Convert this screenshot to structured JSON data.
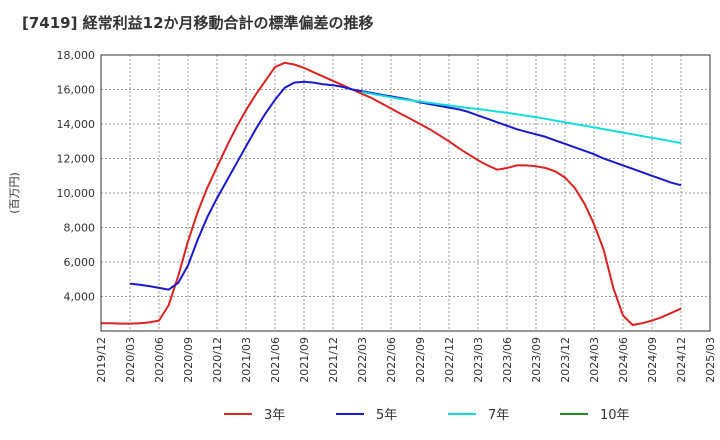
{
  "chart_data": {
    "type": "line",
    "title": "[7419]  経常利益12か月移動合計の標準偏差の推移",
    "ylabel": "(百万円)",
    "xlabel": "",
    "ylim": [
      2000,
      18000
    ],
    "yticks": [
      4000,
      6000,
      8000,
      10000,
      12000,
      14000,
      16000,
      18000
    ],
    "ytick_labels": [
      "4,000",
      "6,000",
      "8,000",
      "10,000",
      "12,000",
      "14,000",
      "16,000",
      "18,000"
    ],
    "xticks": [
      "2019-12",
      "2020-03",
      "2020-06",
      "2020-09",
      "2020-12",
      "2021-03",
      "2021-06",
      "2021-09",
      "2021-12",
      "2022-03",
      "2022-06",
      "2022-09",
      "2022-12",
      "2023-03",
      "2023-06",
      "2023-09",
      "2023-12",
      "2024-03",
      "2024-06",
      "2024-09",
      "2024-12",
      "2025-03"
    ],
    "xtick_labels": [
      "2019/12",
      "2020/03",
      "2020/06",
      "2020/09",
      "2020/12",
      "2021/03",
      "2021/06",
      "2021/09",
      "2021/12",
      "2022/03",
      "2022/06",
      "2022/09",
      "2022/12",
      "2023/03",
      "2023/06",
      "2023/09",
      "2023/12",
      "2024/03",
      "2024/06",
      "2024/09",
      "2024/12",
      "2025/03"
    ],
    "grid": true,
    "legend_position": "bottom",
    "series": [
      {
        "name": "3年",
        "color": "#dd2222",
        "x": [
          "2019-12",
          "2020-01",
          "2020-02",
          "2020-03",
          "2020-04",
          "2020-05",
          "2020-06",
          "2020-07",
          "2020-08",
          "2020-09",
          "2020-10",
          "2020-11",
          "2020-12",
          "2021-01",
          "2021-02",
          "2021-03",
          "2021-04",
          "2021-05",
          "2021-06",
          "2021-07",
          "2021-08",
          "2021-09",
          "2021-10",
          "2021-11",
          "2021-12",
          "2022-01",
          "2022-02",
          "2022-03",
          "2022-04",
          "2022-05",
          "2022-06",
          "2022-07",
          "2022-08",
          "2022-09",
          "2022-10",
          "2022-11",
          "2022-12",
          "2023-01",
          "2023-02",
          "2023-03",
          "2023-04",
          "2023-05",
          "2023-06",
          "2023-07",
          "2023-08",
          "2023-09",
          "2023-10",
          "2023-11",
          "2023-12",
          "2024-01",
          "2024-02",
          "2024-03",
          "2024-04",
          "2024-05",
          "2024-06",
          "2024-07",
          "2024-08",
          "2024-09",
          "2024-10",
          "2024-11",
          "2024-12"
        ],
        "values": [
          2450,
          2450,
          2430,
          2430,
          2450,
          2500,
          2600,
          3500,
          5200,
          7200,
          8900,
          10300,
          11500,
          12700,
          13800,
          14800,
          15700,
          16500,
          17300,
          17550,
          17450,
          17250,
          17000,
          16750,
          16500,
          16250,
          16000,
          15750,
          15500,
          15200,
          14900,
          14600,
          14300,
          14000,
          13700,
          13350,
          13000,
          12600,
          12250,
          11900,
          11600,
          11350,
          11450,
          11600,
          11600,
          11550,
          11450,
          11250,
          10900,
          10300,
          9400,
          8200,
          6700,
          4500,
          2900,
          2350,
          2450,
          2600,
          2800,
          3050,
          3300
        ]
      },
      {
        "name": "5年",
        "color": "#1a1acc",
        "x": [
          "2020-03",
          "2020-04",
          "2020-05",
          "2020-06",
          "2020-07",
          "2020-08",
          "2020-09",
          "2020-10",
          "2020-11",
          "2020-12",
          "2021-01",
          "2021-02",
          "2021-03",
          "2021-04",
          "2021-05",
          "2021-06",
          "2021-07",
          "2021-08",
          "2021-09",
          "2021-10",
          "2021-11",
          "2021-12",
          "2022-01",
          "2022-02",
          "2022-03",
          "2022-04",
          "2022-05",
          "2022-06",
          "2022-07",
          "2022-08",
          "2022-09",
          "2022-10",
          "2022-11",
          "2022-12",
          "2023-01",
          "2023-02",
          "2023-03",
          "2023-04",
          "2023-05",
          "2023-06",
          "2023-07",
          "2023-08",
          "2023-09",
          "2023-10",
          "2023-11",
          "2023-12",
          "2024-01",
          "2024-02",
          "2024-03",
          "2024-04",
          "2024-05",
          "2024-06",
          "2024-07",
          "2024-08",
          "2024-09",
          "2024-10",
          "2024-11",
          "2024-12"
        ],
        "values": [
          4750,
          4680,
          4600,
          4500,
          4400,
          4800,
          5800,
          7300,
          8600,
          9700,
          10700,
          11700,
          12700,
          13700,
          14600,
          15400,
          16100,
          16400,
          16450,
          16400,
          16300,
          16250,
          16150,
          16000,
          15900,
          15800,
          15700,
          15600,
          15500,
          15400,
          15250,
          15150,
          15050,
          14950,
          14850,
          14700,
          14500,
          14300,
          14100,
          13900,
          13700,
          13550,
          13400,
          13250,
          13050,
          12850,
          12650,
          12450,
          12250,
          12000,
          11800,
          11600,
          11400,
          11200,
          11000,
          10800,
          10600,
          10450
        ]
      },
      {
        "name": "7年",
        "color": "#11dddd",
        "x": [
          "2022-03",
          "2022-04",
          "2022-05",
          "2022-06",
          "2022-07",
          "2022-08",
          "2022-09",
          "2022-10",
          "2022-11",
          "2022-12",
          "2023-01",
          "2023-02",
          "2023-03",
          "2023-04",
          "2023-05",
          "2023-06",
          "2023-07",
          "2023-08",
          "2023-09",
          "2023-10",
          "2023-11",
          "2023-12",
          "2024-01",
          "2024-02",
          "2024-03",
          "2024-04",
          "2024-05",
          "2024-06",
          "2024-07",
          "2024-08",
          "2024-09",
          "2024-10",
          "2024-11",
          "2024-12"
        ],
        "values": [
          15850,
          15750,
          15650,
          15550,
          15450,
          15380,
          15300,
          15230,
          15150,
          15080,
          15000,
          14930,
          14870,
          14800,
          14720,
          14650,
          14570,
          14480,
          14400,
          14300,
          14200,
          14100,
          14000,
          13900,
          13800,
          13700,
          13600,
          13500,
          13400,
          13300,
          13200,
          13100,
          13000,
          12900
        ]
      },
      {
        "name": "10年",
        "color": "#228822",
        "x": [],
        "values": []
      }
    ]
  }
}
